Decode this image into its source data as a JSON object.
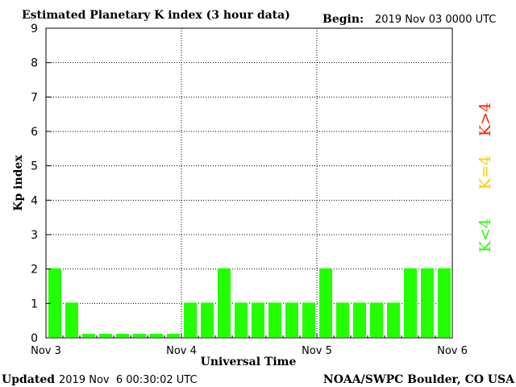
{
  "chart_data": {
    "type": "bar",
    "title": "Estimated Planetary K index (3 hour data)",
    "begin_label": "Begin:",
    "begin_value": "2019 Nov 03 0000 UTC",
    "xlabel": "Universal Time",
    "ylabel": "Kp index",
    "ylim": [
      0,
      9
    ],
    "yticks": [
      "0",
      "1",
      "2",
      "3",
      "4",
      "5",
      "6",
      "7",
      "8",
      "9"
    ],
    "xticks": [
      "Nov 3",
      "Nov 4",
      "Nov 5",
      "Nov 6"
    ],
    "bars_per_day": 8,
    "values": [
      2,
      1,
      0,
      0,
      0,
      0,
      0,
      0,
      1,
      1,
      2,
      1,
      1,
      1,
      1,
      1,
      2,
      1,
      1,
      1,
      1,
      2,
      2,
      2
    ],
    "bar_color": "#22ff00",
    "grid": true,
    "legend": [
      {
        "label": "K<4",
        "color": "#22ff00"
      },
      {
        "label": "K=4",
        "color": "#ffcc00"
      },
      {
        "label": "K>4",
        "color": "#ff2200"
      }
    ]
  },
  "footer": {
    "updated_label": "Updated",
    "updated_value": "2019 Nov  6 00:30:02 UTC",
    "source": "NOAA/SWPC Boulder, CO USA"
  }
}
